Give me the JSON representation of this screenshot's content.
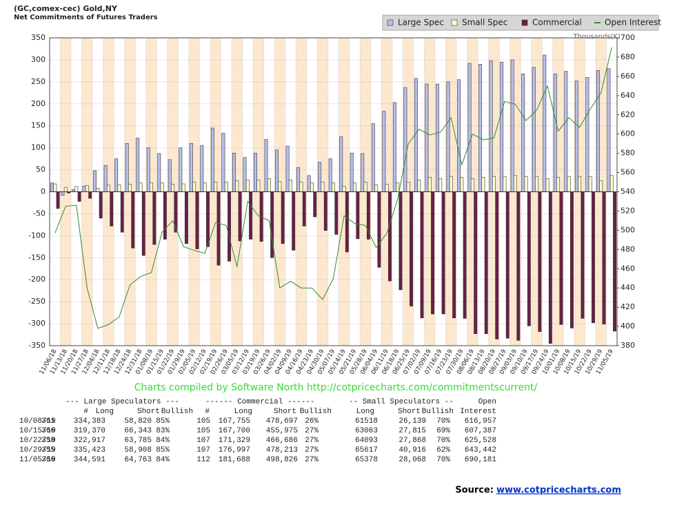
{
  "chart_data": {
    "type": "bar",
    "title": "(GC,comex-cec) Gold,NY",
    "subtitle": "Net Commitments of Futures Traders",
    "y2_label": "Thousands(K)",
    "categories": [
      "11/06/18",
      "11/13/18",
      "11/20/18",
      "11/27/18",
      "12/04/18",
      "12/11/18",
      "12/18/18",
      "12/24/18",
      "12/31/18",
      "01/08/19",
      "01/15/19",
      "01/22/19",
      "01/29/19",
      "02/05/19",
      "02/12/19",
      "02/19/19",
      "02/26/19",
      "03/05/19",
      "03/12/19",
      "03/19/19",
      "03/26/19",
      "04/02/19",
      "04/09/19",
      "04/16/19",
      "04/23/19",
      "04/30/19",
      "05/07/19",
      "05/14/19",
      "05/21/19",
      "05/28/19",
      "06/04/19",
      "06/11/19",
      "06/18/19",
      "06/25/19",
      "07/02/19",
      "07/09/19",
      "07/16/19",
      "07/23/19",
      "07/30/19",
      "08/06/19",
      "08/13/19",
      "08/20/19",
      "08/27/19",
      "09/03/19",
      "09/10/19",
      "09/17/19",
      "09/24/19",
      "10/01/19",
      "10/08/19",
      "10/15/19",
      "10/22/19",
      "10/29/19",
      "11/05/19"
    ],
    "series": [
      {
        "name": "Large Spec",
        "color": "#b8bde8",
        "values": [
          20,
          -8,
          5,
          13,
          48,
          60,
          75,
          110,
          122,
          100,
          87,
          73,
          100,
          110,
          105,
          145,
          133,
          88,
          78,
          88,
          119,
          95,
          104,
          55,
          37,
          67,
          75,
          125,
          88,
          87,
          155,
          183,
          203,
          237,
          258,
          245,
          245,
          250,
          255,
          292,
          290,
          298,
          295,
          300,
          268,
          283,
          311,
          268,
          274,
          252,
          260,
          276,
          280
        ]
      },
      {
        "name": "Small Spec",
        "color": "#ffffcc",
        "values": [
          18,
          10,
          12,
          14,
          8,
          15,
          16,
          17,
          20,
          20,
          20,
          17,
          18,
          22,
          20,
          22,
          22,
          25,
          27,
          27,
          30,
          23,
          27,
          22,
          20,
          22,
          20,
          12,
          20,
          22,
          16,
          17,
          20,
          22,
          27,
          33,
          30,
          35,
          33,
          30,
          33,
          35,
          35,
          37,
          35,
          35,
          30,
          33,
          35,
          35,
          35,
          25,
          37
        ]
      },
      {
        "name": "Commercial",
        "color": "#6b1f44",
        "values": [
          -38,
          -3,
          -22,
          -15,
          -60,
          -78,
          -92,
          -128,
          -145,
          -120,
          -108,
          -92,
          -118,
          -130,
          -125,
          -167,
          -158,
          -112,
          -108,
          -113,
          -150,
          -118,
          -133,
          -78,
          -57,
          -88,
          -97,
          -137,
          -107,
          -108,
          -172,
          -203,
          -223,
          -260,
          -287,
          -278,
          -278,
          -287,
          -288,
          -323,
          -323,
          -335,
          -333,
          -338,
          -305,
          -318,
          -345,
          -302,
          -310,
          -288,
          -298,
          -301,
          -317
        ]
      },
      {
        "name": "Open Interest",
        "color": "#2e8b2e",
        "axis": "y2",
        "type": "line",
        "values": [
          497,
          525,
          526,
          440,
          398,
          402,
          410,
          443,
          452,
          456,
          498,
          510,
          483,
          479,
          476,
          508,
          505,
          462,
          530,
          515,
          510,
          440,
          447,
          440,
          440,
          428,
          450,
          515,
          507,
          505,
          482,
          497,
          532,
          590,
          605,
          599,
          602,
          617,
          568,
          600,
          594,
          596,
          634,
          631,
          614,
          625,
          650,
          603,
          617,
          607,
          626,
          643,
          690
        ]
      }
    ],
    "ylim": [
      -350,
      350
    ],
    "yticks": [
      -350,
      -300,
      -250,
      -200,
      -150,
      -100,
      -50,
      0,
      50,
      100,
      150,
      200,
      250,
      300,
      350
    ],
    "y2lim": [
      380,
      700
    ],
    "y2ticks": [
      380,
      400,
      420,
      440,
      460,
      480,
      500,
      520,
      540,
      560,
      580,
      600,
      620,
      640,
      660,
      680,
      700
    ],
    "grid": true
  },
  "credit": "Charts compiled by Software North  http://cotpricecharts.com/commitmentscurrent/",
  "table": {
    "group_headers": [
      "--- Large Speculators ---",
      "------ Commercial ------",
      "-- Small Speculators --",
      "Open"
    ],
    "columns": [
      "#",
      "Long",
      "Short",
      "Bullish",
      "#",
      "Long",
      "Short",
      "Bullish",
      "Long",
      "Short",
      "Bullish",
      "Interest"
    ],
    "rows": [
      [
        "10/08/19",
        "361",
        "334,383",
        "58,820",
        "85%",
        "105",
        "167,755",
        "478,697",
        "26%",
        "61518",
        "26,139",
        "70%",
        "616,957"
      ],
      [
        "10/15/19",
        "366",
        "319,370",
        "66,343",
        "83%",
        "105",
        "167,700",
        "455,975",
        "27%",
        "63063",
        "27,815",
        "69%",
        "607,387"
      ],
      [
        "10/22/19",
        "358",
        "322,917",
        "63,785",
        "84%",
        "107",
        "171,329",
        "466,686",
        "27%",
        "64093",
        "27,868",
        "70%",
        "625,528"
      ],
      [
        "10/29/19",
        "355",
        "335,423",
        "58,908",
        "85%",
        "107",
        "176,997",
        "478,213",
        "27%",
        "65617",
        "40,916",
        "62%",
        "643,442"
      ],
      [
        "11/05/19",
        "366",
        "344,591",
        "64,763",
        "84%",
        "112",
        "181,688",
        "498,826",
        "27%",
        "65378",
        "28,068",
        "70%",
        "690,181"
      ]
    ]
  },
  "source": {
    "label": "Source:",
    "link": "www.cotpricecharts.com"
  }
}
